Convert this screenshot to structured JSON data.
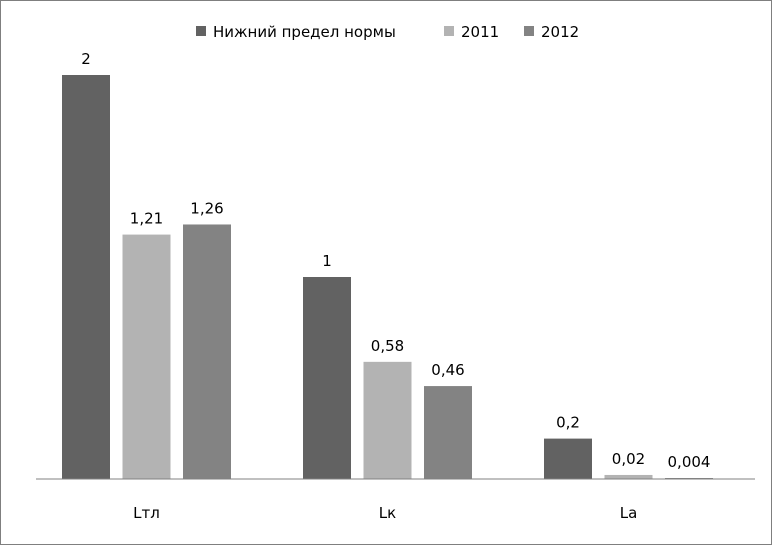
{
  "chart_data": {
    "type": "bar",
    "title": "",
    "xlabel": "",
    "ylabel": "",
    "categories": [
      "Lтл",
      "Lк",
      "La"
    ],
    "series": [
      {
        "name": "Нижний предел нормы",
        "values": [
          2,
          1,
          0.2
        ],
        "labels": [
          "2",
          "1",
          "0,2"
        ],
        "color": "#626262"
      },
      {
        "name": "2011",
        "values": [
          1.21,
          0.58,
          0.02
        ],
        "labels": [
          "1,21",
          "0,58",
          "0,02"
        ],
        "color": "#b3b3b3"
      },
      {
        "name": "2012",
        "values": [
          1.26,
          0.46,
          0.004
        ],
        "labels": [
          "1,26",
          "0,46",
          "0,004"
        ],
        "color": "#838383"
      }
    ],
    "grid": false,
    "legend_position": "top",
    "y_axis_visible": false
  }
}
